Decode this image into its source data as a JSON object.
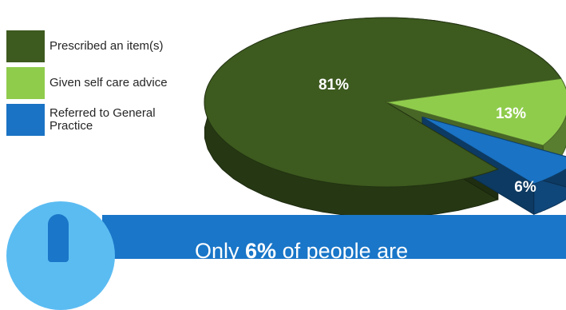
{
  "chart_data": {
    "type": "pie",
    "title": "",
    "labels": [
      "Prescribed an item(s)",
      "Given self care advice",
      "Referred to General Practice"
    ],
    "values": [
      81,
      13,
      6
    ],
    "value_labels": [
      "81%",
      "13%",
      "6%"
    ],
    "colors": [
      "#3d5a1f",
      "#8fcc4c",
      "#1a73c4"
    ],
    "exploded": [
      false,
      false,
      true
    ],
    "style": "3d",
    "legend_position": "left"
  },
  "legend": {
    "items": [
      {
        "label": "Prescribed an item(s)",
        "color": "#3d5a1f"
      },
      {
        "label": "Given self care advice",
        "color": "#8fcc4c"
      },
      {
        "label": "Referred to General Practice",
        "color": "#1a73c4"
      }
    ]
  },
  "banner": {
    "prefix": "Only ",
    "highlight": "6%",
    "suffix": " of people are",
    "background_color": "#1976c8"
  },
  "info_icon": {
    "icon": "exclamation-info-icon",
    "color": "#5bbcf2"
  }
}
